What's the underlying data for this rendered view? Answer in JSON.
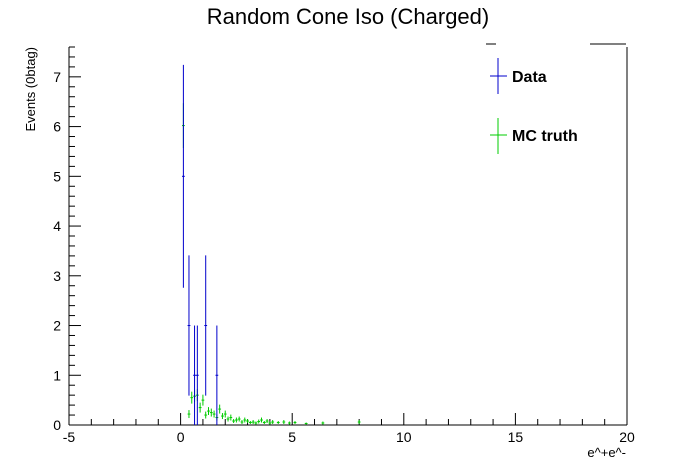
{
  "chart_data": {
    "type": "scatter",
    "title": "Random Cone Iso (Charged)",
    "xlabel": "e^+e^-",
    "ylabel": "Events (0btag)",
    "xlim": [
      -5,
      20
    ],
    "ylim": [
      0,
      7.6
    ],
    "x_ticks": [
      "-5",
      "0",
      "5",
      "10",
      "15",
      "20"
    ],
    "y_ticks": [
      "0",
      "1",
      "2",
      "3",
      "4",
      "5",
      "6",
      "7"
    ],
    "grid": false,
    "legend_position": "top-right",
    "series": [
      {
        "name": "Data",
        "color": "#0000cc",
        "marker": "error-bar",
        "points": [
          {
            "x": 0.125,
            "y": 5,
            "err": 2.24
          },
          {
            "x": 0.375,
            "y": 2,
            "err": 1.41
          },
          {
            "x": 0.625,
            "y": 1,
            "err": 1.0
          },
          {
            "x": 0.75,
            "y": 1,
            "err": 1.0
          },
          {
            "x": 1.125,
            "y": 2,
            "err": 1.41
          },
          {
            "x": 1.625,
            "y": 1,
            "err": 1.0
          }
        ]
      },
      {
        "name": "MC truth",
        "color": "#00cc00",
        "marker": "error-bar",
        "points": [
          {
            "x": 0.125,
            "y": 6.02,
            "err": 0.45
          },
          {
            "x": 0.375,
            "y": 0.22,
            "err": 0.08
          },
          {
            "x": 0.5,
            "y": 0.55,
            "err": 0.12
          },
          {
            "x": 0.625,
            "y": 0.58,
            "err": 0.12
          },
          {
            "x": 0.75,
            "y": 0.6,
            "err": 0.12
          },
          {
            "x": 0.875,
            "y": 0.35,
            "err": 0.1
          },
          {
            "x": 1.0,
            "y": 0.5,
            "err": 0.11
          },
          {
            "x": 1.125,
            "y": 0.2,
            "err": 0.07
          },
          {
            "x": 1.25,
            "y": 0.28,
            "err": 0.08
          },
          {
            "x": 1.375,
            "y": 0.25,
            "err": 0.08
          },
          {
            "x": 1.5,
            "y": 0.22,
            "err": 0.07
          },
          {
            "x": 1.625,
            "y": 0.15,
            "err": 0.06
          },
          {
            "x": 1.75,
            "y": 0.32,
            "err": 0.09
          },
          {
            "x": 1.875,
            "y": 0.18,
            "err": 0.06
          },
          {
            "x": 2.0,
            "y": 0.22,
            "err": 0.07
          },
          {
            "x": 2.125,
            "y": 0.12,
            "err": 0.05
          },
          {
            "x": 2.25,
            "y": 0.15,
            "err": 0.06
          },
          {
            "x": 2.375,
            "y": 0.08,
            "err": 0.04
          },
          {
            "x": 2.5,
            "y": 0.1,
            "err": 0.05
          },
          {
            "x": 2.625,
            "y": 0.12,
            "err": 0.05
          },
          {
            "x": 2.75,
            "y": 0.06,
            "err": 0.04
          },
          {
            "x": 2.875,
            "y": 0.1,
            "err": 0.05
          },
          {
            "x": 3.0,
            "y": 0.08,
            "err": 0.04
          },
          {
            "x": 3.125,
            "y": 0.05,
            "err": 0.03
          },
          {
            "x": 3.25,
            "y": 0.06,
            "err": 0.04
          },
          {
            "x": 3.375,
            "y": 0.04,
            "err": 0.03
          },
          {
            "x": 3.5,
            "y": 0.07,
            "err": 0.04
          },
          {
            "x": 3.625,
            "y": 0.1,
            "err": 0.05
          },
          {
            "x": 3.75,
            "y": 0.05,
            "err": 0.03
          },
          {
            "x": 3.875,
            "y": 0.08,
            "err": 0.04
          },
          {
            "x": 4.0,
            "y": 0.04,
            "err": 0.03
          },
          {
            "x": 4.125,
            "y": 0.06,
            "err": 0.04
          },
          {
            "x": 4.375,
            "y": 0.05,
            "err": 0.03
          },
          {
            "x": 4.625,
            "y": 0.06,
            "err": 0.04
          },
          {
            "x": 4.875,
            "y": 0.04,
            "err": 0.03
          },
          {
            "x": 5.125,
            "y": 0.05,
            "err": 0.03
          },
          {
            "x": 5.625,
            "y": 0.03,
            "err": 0.02
          },
          {
            "x": 6.375,
            "y": 0.04,
            "err": 0.03
          },
          {
            "x": 8.0,
            "y": 0.06,
            "err": 0.04
          }
        ]
      }
    ]
  }
}
